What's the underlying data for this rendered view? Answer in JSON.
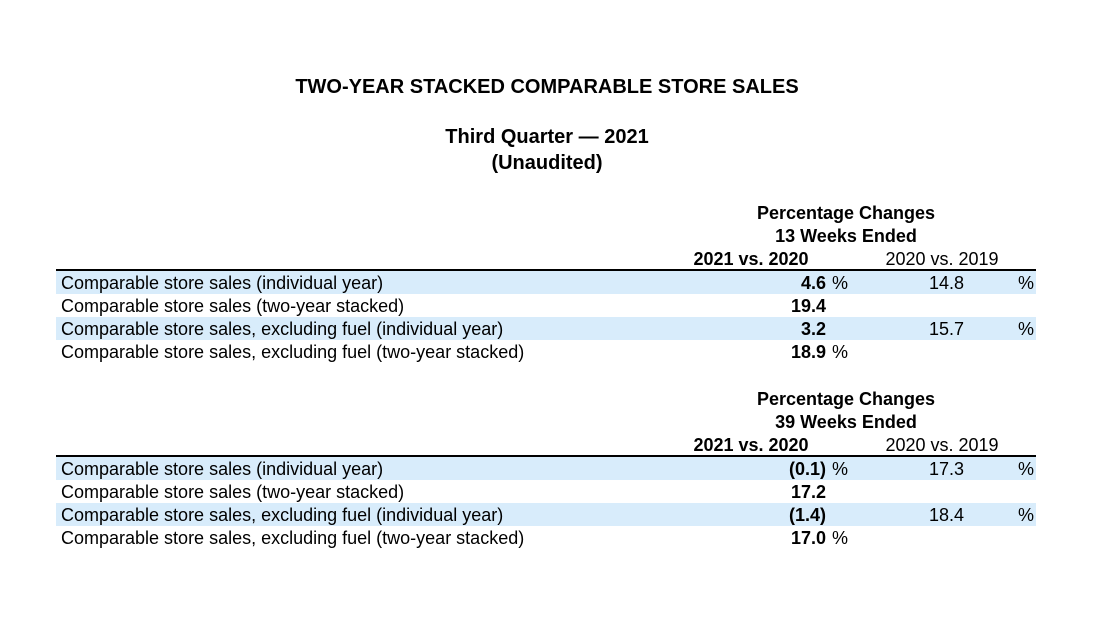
{
  "title": "TWO-YEAR STACKED COMPARABLE STORE SALES",
  "subtitle_line1": "Third Quarter — 2021",
  "subtitle_line2": "(Unaudited)",
  "sections": [
    {
      "header_line1": "Percentage Changes",
      "header_line2": "13 Weeks Ended",
      "col1_header": "2021 vs. 2020",
      "col2_header": "2020 vs. 2019",
      "rows": [
        {
          "label": "Comparable store sales (individual year)",
          "v1": "4.6",
          "p1": "%",
          "v2": "14.8",
          "p2": "%",
          "shaded": true
        },
        {
          "label": "Comparable store sales (two-year stacked)",
          "v1": "19.4",
          "p1": "",
          "v2": "",
          "p2": "",
          "shaded": false
        },
        {
          "label": "Comparable store sales, excluding fuel (individual year)",
          "v1": "3.2",
          "p1": "",
          "v2": "15.7",
          "p2": "%",
          "shaded": true
        },
        {
          "label": "Comparable store sales, excluding fuel (two-year stacked)",
          "v1": "18.9",
          "p1": "%",
          "v2": "",
          "p2": "",
          "shaded": false
        }
      ]
    },
    {
      "header_line1": "Percentage Changes",
      "header_line2": "39 Weeks Ended",
      "col1_header": "2021 vs. 2020",
      "col2_header": "2020 vs. 2019",
      "rows": [
        {
          "label": "Comparable store sales (individual year)",
          "v1": "(0.1)",
          "p1": "%",
          "v2": "17.3",
          "p2": "%",
          "shaded": true
        },
        {
          "label": "Comparable store sales (two-year stacked)",
          "v1": "17.2",
          "p1": "",
          "v2": "",
          "p2": "",
          "shaded": false
        },
        {
          "label": "Comparable store sales, excluding fuel (individual year)",
          "v1": "(1.4)",
          "p1": "",
          "v2": "18.4",
          "p2": "%",
          "shaded": true
        },
        {
          "label": "Comparable store sales, excluding fuel (two-year stacked)",
          "v1": "17.0",
          "p1": "%",
          "v2": "",
          "p2": "",
          "shaded": false
        }
      ]
    }
  ],
  "colors": {
    "row_shade": "#d8ecfb",
    "text": "#000000",
    "rule": "#000000"
  }
}
